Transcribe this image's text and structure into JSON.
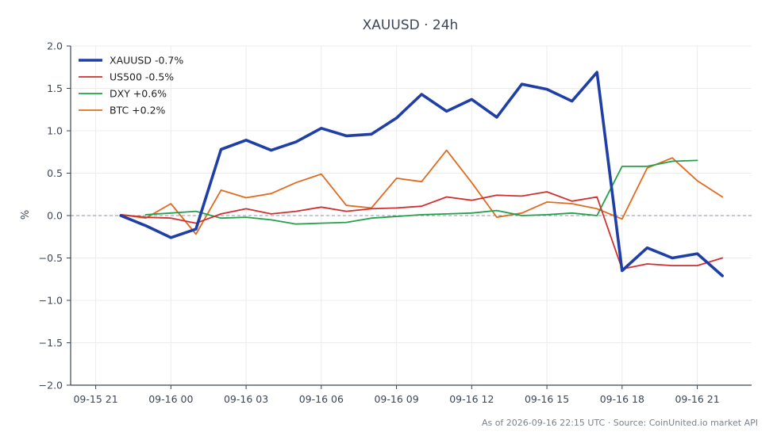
{
  "chart_data": {
    "type": "line",
    "title": "XAUUSD · 24h",
    "xlabel": "",
    "ylabel": "%",
    "ylim": [
      -2.0,
      2.0
    ],
    "yticks": [
      -2.0,
      -1.5,
      -1.0,
      -0.5,
      0.0,
      0.5,
      1.0,
      1.5,
      2.0
    ],
    "ytick_labels": [
      "−2.0",
      "−1.5",
      "−1.0",
      "−0.5",
      "0.0",
      "0.5",
      "1.0",
      "1.5",
      "2.0"
    ],
    "xlim": [
      "2026-09-15 20:00",
      "2026-09-16 23:10"
    ],
    "xticks": [
      "2026-09-15 21:00",
      "2026-09-16 00:00",
      "2026-09-16 03:00",
      "2026-09-16 06:00",
      "2026-09-16 09:00",
      "2026-09-16 12:00",
      "2026-09-16 15:00",
      "2026-09-16 18:00",
      "2026-09-16 21:00"
    ],
    "xtick_labels": [
      "09-15 21",
      "09-16 00",
      "09-16 03",
      "09-16 06",
      "09-16 09",
      "09-16 12",
      "09-16 15",
      "09-16 18",
      "09-16 21"
    ],
    "grid": true,
    "zero_line": true,
    "legend_position": "top-left",
    "footer": "As of 2026-09-16 22:15 UTC · Source: CoinUnited.io market API",
    "x": [
      "2026-09-15 22:00",
      "2026-09-15 23:00",
      "2026-09-16 00:00",
      "2026-09-16 01:00",
      "2026-09-16 02:00",
      "2026-09-16 03:00",
      "2026-09-16 04:00",
      "2026-09-16 05:00",
      "2026-09-16 06:00",
      "2026-09-16 07:00",
      "2026-09-16 08:00",
      "2026-09-16 09:00",
      "2026-09-16 10:00",
      "2026-09-16 11:00",
      "2026-09-16 12:00",
      "2026-09-16 13:00",
      "2026-09-16 14:00",
      "2026-09-16 15:00",
      "2026-09-16 16:00",
      "2026-09-16 17:00",
      "2026-09-16 18:00",
      "2026-09-16 19:00",
      "2026-09-16 20:00",
      "2026-09-16 21:00",
      "2026-09-16 22:00"
    ],
    "series": [
      {
        "name": "XAUUSD -0.7%",
        "color": "#1f3fa6",
        "width": 3.6,
        "values": [
          0.0,
          -0.12,
          -0.26,
          -0.16,
          0.78,
          0.89,
          0.77,
          0.87,
          1.03,
          0.94,
          0.96,
          1.15,
          1.43,
          1.23,
          1.37,
          1.16,
          1.55,
          1.49,
          1.35,
          1.69,
          -0.65,
          -0.38,
          -0.5,
          -0.45,
          -0.71
        ]
      },
      {
        "name": "US500 -0.5%",
        "color": "#d12f2f",
        "width": 1.8,
        "values": [
          0.01,
          -0.02,
          -0.03,
          -0.09,
          0.02,
          0.08,
          0.02,
          0.05,
          0.1,
          0.05,
          0.08,
          0.09,
          0.11,
          0.22,
          0.18,
          0.24,
          0.23,
          0.28,
          0.17,
          0.22,
          -0.63,
          -0.57,
          -0.59,
          -0.59,
          -0.5
        ]
      },
      {
        "name": "DXY +0.6%",
        "color": "#22a04a",
        "width": 1.8,
        "values": [
          null,
          0.01,
          0.03,
          0.05,
          -0.03,
          -0.02,
          -0.05,
          -0.1,
          -0.09,
          -0.08,
          -0.03,
          -0.01,
          0.01,
          0.02,
          0.03,
          0.06,
          0.0,
          0.01,
          0.03,
          0.0,
          0.58,
          0.58,
          0.64,
          0.65,
          null
        ]
      },
      {
        "name": "BTC +0.2%",
        "color": "#e06b1f",
        "width": 1.8,
        "values": [
          0.01,
          -0.03,
          0.14,
          -0.22,
          0.3,
          0.21,
          0.26,
          0.39,
          0.49,
          0.12,
          0.09,
          0.44,
          0.4,
          0.77,
          0.39,
          -0.02,
          0.03,
          0.16,
          0.14,
          0.08,
          -0.04,
          0.56,
          0.68,
          0.41,
          0.22
        ]
      }
    ]
  }
}
